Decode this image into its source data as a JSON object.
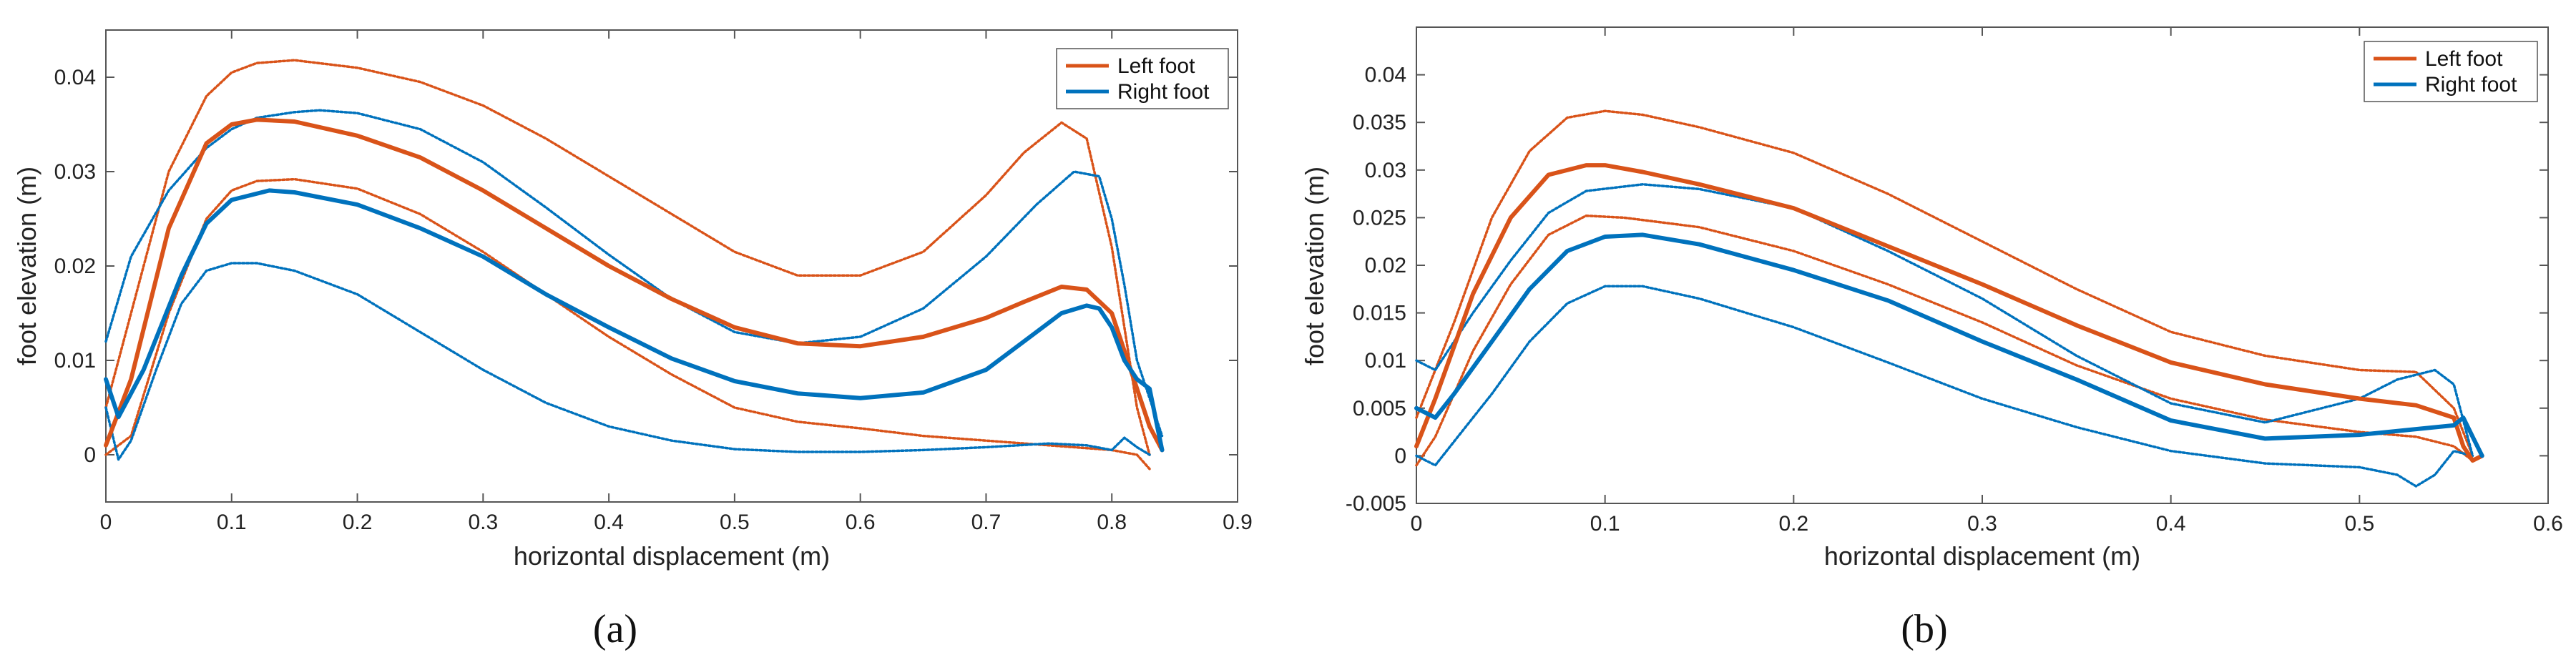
{
  "colors": {
    "left": "#D95319",
    "right": "#0072BD"
  },
  "chart_data": [
    {
      "type": "line",
      "panel_label": "(a)",
      "xlabel": "horizontal displacement (m)",
      "ylabel": "foot elevation (m)",
      "xlim": [
        0,
        0.9
      ],
      "ylim": [
        -0.005,
        0.045
      ],
      "x_ticks": [
        "0",
        "0.1",
        "0.2",
        "0.3",
        "0.4",
        "0.5",
        "0.6",
        "0.7",
        "0.8",
        "0.9"
      ],
      "y_ticks": [
        "0",
        "0.01",
        "0.02",
        "0.03",
        "0.04"
      ],
      "legend": [
        "Left foot",
        "Right foot"
      ],
      "series": [
        {
          "name": "Left foot",
          "style": "mean",
          "color_key": "left",
          "x": [
            0,
            0.02,
            0.05,
            0.08,
            0.1,
            0.12,
            0.15,
            0.2,
            0.25,
            0.3,
            0.35,
            0.4,
            0.45,
            0.5,
            0.55,
            0.6,
            0.65,
            0.7,
            0.73,
            0.76,
            0.78,
            0.8,
            0.82,
            0.83,
            0.84
          ],
          "y": [
            0.001,
            0.008,
            0.024,
            0.033,
            0.035,
            0.0355,
            0.0353,
            0.0338,
            0.0315,
            0.028,
            0.024,
            0.02,
            0.0165,
            0.0135,
            0.0118,
            0.0115,
            0.0125,
            0.0145,
            0.0162,
            0.0178,
            0.0175,
            0.015,
            0.007,
            0.003,
            0.0005
          ]
        },
        {
          "name": "Left foot upper",
          "style": "band",
          "color_key": "left",
          "x": [
            0,
            0.02,
            0.05,
            0.08,
            0.1,
            0.12,
            0.15,
            0.2,
            0.25,
            0.3,
            0.35,
            0.4,
            0.45,
            0.5,
            0.55,
            0.6,
            0.65,
            0.7,
            0.73,
            0.76,
            0.78,
            0.8,
            0.82,
            0.83
          ],
          "y": [
            0.005,
            0.015,
            0.03,
            0.038,
            0.0405,
            0.0415,
            0.0418,
            0.041,
            0.0395,
            0.037,
            0.0335,
            0.0295,
            0.0255,
            0.0215,
            0.019,
            0.019,
            0.0215,
            0.0275,
            0.032,
            0.0352,
            0.0335,
            0.022,
            0.005,
            0.0
          ]
        },
        {
          "name": "Left foot lower",
          "style": "band",
          "color_key": "left",
          "x": [
            0,
            0.02,
            0.05,
            0.08,
            0.1,
            0.12,
            0.15,
            0.2,
            0.25,
            0.3,
            0.35,
            0.4,
            0.45,
            0.5,
            0.55,
            0.6,
            0.65,
            0.7,
            0.75,
            0.8,
            0.82,
            0.83
          ],
          "y": [
            0.0,
            0.002,
            0.015,
            0.025,
            0.028,
            0.029,
            0.0292,
            0.0282,
            0.0255,
            0.0215,
            0.017,
            0.0125,
            0.0085,
            0.005,
            0.0035,
            0.0028,
            0.002,
            0.0015,
            0.001,
            0.0005,
            0.0,
            -0.0015
          ]
        },
        {
          "name": "Right foot",
          "style": "mean",
          "color_key": "right",
          "x": [
            0,
            0.01,
            0.03,
            0.06,
            0.08,
            0.1,
            0.13,
            0.15,
            0.2,
            0.25,
            0.3,
            0.35,
            0.4,
            0.45,
            0.5,
            0.55,
            0.6,
            0.65,
            0.7,
            0.73,
            0.76,
            0.78,
            0.79,
            0.8,
            0.81,
            0.82,
            0.83,
            0.84
          ],
          "y": [
            0.008,
            0.004,
            0.009,
            0.019,
            0.0245,
            0.027,
            0.028,
            0.0278,
            0.0265,
            0.024,
            0.021,
            0.017,
            0.0135,
            0.0102,
            0.0078,
            0.0065,
            0.006,
            0.0066,
            0.009,
            0.012,
            0.015,
            0.0158,
            0.0155,
            0.0135,
            0.01,
            0.008,
            0.007,
            0.0005
          ]
        },
        {
          "name": "Right foot upper",
          "style": "band",
          "color_key": "right",
          "x": [
            0,
            0.02,
            0.05,
            0.08,
            0.1,
            0.12,
            0.15,
            0.17,
            0.2,
            0.25,
            0.3,
            0.35,
            0.4,
            0.45,
            0.5,
            0.55,
            0.6,
            0.65,
            0.7,
            0.74,
            0.77,
            0.79,
            0.8,
            0.81,
            0.82,
            0.83,
            0.84
          ],
          "y": [
            0.012,
            0.021,
            0.028,
            0.0325,
            0.0345,
            0.0357,
            0.0363,
            0.0365,
            0.0362,
            0.0345,
            0.031,
            0.0262,
            0.0212,
            0.0165,
            0.013,
            0.0118,
            0.0125,
            0.0155,
            0.021,
            0.0265,
            0.03,
            0.0295,
            0.025,
            0.018,
            0.01,
            0.006,
            0.002
          ]
        },
        {
          "name": "Right foot lower",
          "style": "band",
          "color_key": "right",
          "x": [
            0,
            0.01,
            0.02,
            0.04,
            0.06,
            0.08,
            0.1,
            0.12,
            0.15,
            0.2,
            0.25,
            0.3,
            0.35,
            0.4,
            0.45,
            0.5,
            0.55,
            0.6,
            0.65,
            0.7,
            0.75,
            0.78,
            0.8,
            0.81,
            0.82,
            0.83
          ],
          "y": [
            0.005,
            -0.0005,
            0.0015,
            0.009,
            0.016,
            0.0195,
            0.0203,
            0.0203,
            0.0195,
            0.017,
            0.013,
            0.009,
            0.0055,
            0.003,
            0.0015,
            0.0006,
            0.0003,
            0.0003,
            0.0005,
            0.0008,
            0.0012,
            0.001,
            0.0005,
            0.0018,
            0.0008,
            0.0
          ]
        }
      ]
    },
    {
      "type": "line",
      "panel_label": "(b)",
      "xlabel": "horizontal displacement (m)",
      "ylabel": "foot elevation (m)",
      "xlim": [
        0,
        0.6
      ],
      "ylim": [
        -0.005,
        0.045
      ],
      "x_ticks": [
        "0",
        "0.1",
        "0.2",
        "0.3",
        "0.4",
        "0.5",
        "0.6"
      ],
      "y_ticks": [
        "-0.005",
        "0",
        "0.005",
        "0.01",
        "0.015",
        "0.02",
        "0.025",
        "0.03",
        "0.035",
        "0.04"
      ],
      "legend": [
        "Left foot",
        "Right foot"
      ],
      "series": [
        {
          "name": "Left foot",
          "style": "mean",
          "color_key": "left",
          "x": [
            0,
            0.01,
            0.03,
            0.05,
            0.07,
            0.09,
            0.1,
            0.12,
            0.15,
            0.2,
            0.25,
            0.3,
            0.35,
            0.4,
            0.45,
            0.5,
            0.53,
            0.55,
            0.555,
            0.56,
            0.565
          ],
          "y": [
            0.001,
            0.006,
            0.017,
            0.025,
            0.0295,
            0.0305,
            0.0305,
            0.0298,
            0.0285,
            0.026,
            0.022,
            0.018,
            0.0137,
            0.0098,
            0.0075,
            0.006,
            0.0053,
            0.004,
            0.001,
            -0.0005,
            0.0
          ]
        },
        {
          "name": "Left foot upper",
          "style": "band",
          "color_key": "left",
          "x": [
            0,
            0.02,
            0.04,
            0.06,
            0.08,
            0.1,
            0.12,
            0.15,
            0.2,
            0.25,
            0.3,
            0.35,
            0.4,
            0.45,
            0.5,
            0.53,
            0.55,
            0.56
          ],
          "y": [
            0.004,
            0.014,
            0.025,
            0.032,
            0.0355,
            0.0362,
            0.0358,
            0.0345,
            0.0318,
            0.0275,
            0.0225,
            0.0175,
            0.013,
            0.0105,
            0.009,
            0.0088,
            0.005,
            0.0
          ]
        },
        {
          "name": "Left foot lower",
          "style": "band",
          "color_key": "left",
          "x": [
            0,
            0.01,
            0.03,
            0.05,
            0.07,
            0.09,
            0.11,
            0.15,
            0.2,
            0.25,
            0.3,
            0.35,
            0.4,
            0.45,
            0.5,
            0.53,
            0.55,
            0.56
          ],
          "y": [
            -0.001,
            0.002,
            0.011,
            0.018,
            0.0232,
            0.0252,
            0.025,
            0.024,
            0.0215,
            0.018,
            0.014,
            0.0095,
            0.006,
            0.0038,
            0.0025,
            0.002,
            0.001,
            -0.0005
          ]
        },
        {
          "name": "Right foot",
          "style": "mean",
          "color_key": "right",
          "x": [
            0,
            0.01,
            0.02,
            0.04,
            0.06,
            0.08,
            0.1,
            0.12,
            0.15,
            0.2,
            0.25,
            0.3,
            0.35,
            0.4,
            0.45,
            0.5,
            0.53,
            0.55,
            0.555,
            0.56,
            0.565
          ],
          "y": [
            0.005,
            0.004,
            0.0065,
            0.012,
            0.0175,
            0.0215,
            0.023,
            0.0232,
            0.0222,
            0.0195,
            0.0163,
            0.012,
            0.008,
            0.0037,
            0.0018,
            0.0022,
            0.0028,
            0.0032,
            0.004,
            0.002,
            0.0
          ]
        },
        {
          "name": "Right foot upper",
          "style": "band",
          "color_key": "right",
          "x": [
            0,
            0.01,
            0.03,
            0.05,
            0.07,
            0.09,
            0.12,
            0.15,
            0.2,
            0.25,
            0.3,
            0.35,
            0.4,
            0.45,
            0.5,
            0.52,
            0.54,
            0.55,
            0.56
          ],
          "y": [
            0.01,
            0.009,
            0.015,
            0.0205,
            0.0255,
            0.0278,
            0.0285,
            0.028,
            0.026,
            0.0215,
            0.0165,
            0.0105,
            0.0055,
            0.0035,
            0.006,
            0.008,
            0.009,
            0.0075,
            0.0
          ]
        },
        {
          "name": "Right foot lower",
          "style": "band",
          "color_key": "right",
          "x": [
            0,
            0.01,
            0.02,
            0.04,
            0.06,
            0.08,
            0.1,
            0.12,
            0.15,
            0.2,
            0.25,
            0.3,
            0.35,
            0.4,
            0.45,
            0.5,
            0.52,
            0.53,
            0.54,
            0.55,
            0.56
          ],
          "y": [
            0.0,
            -0.001,
            0.0015,
            0.0065,
            0.012,
            0.016,
            0.0178,
            0.0178,
            0.0165,
            0.0135,
            0.0098,
            0.006,
            0.003,
            0.0005,
            -0.0008,
            -0.0012,
            -0.002,
            -0.0032,
            -0.002,
            0.0005,
            0.0
          ]
        }
      ]
    }
  ]
}
